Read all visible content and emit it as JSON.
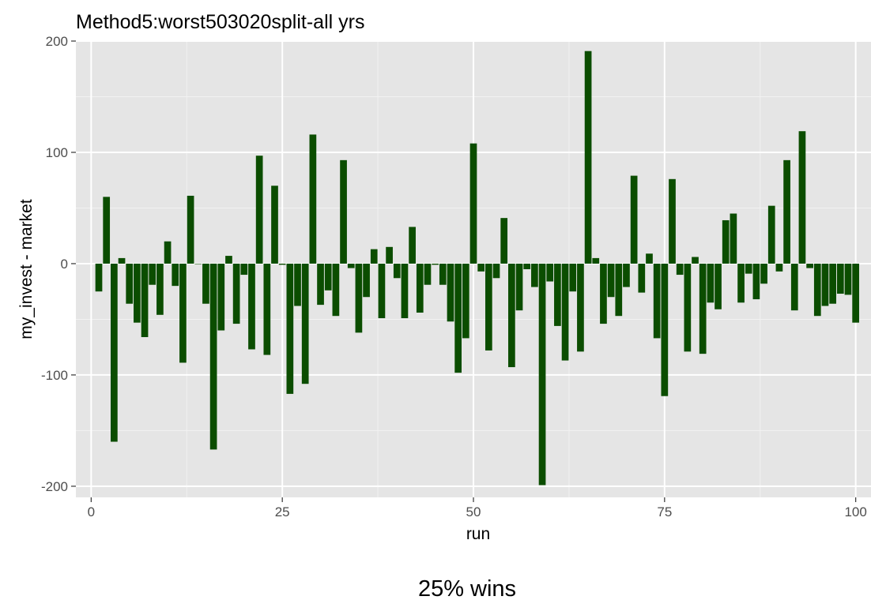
{
  "chart_data": {
    "type": "bar",
    "title": "Method5:worst503020split-all yrs",
    "xlabel": "run",
    "ylabel": "my_invest - market",
    "xlim": [
      -2,
      102
    ],
    "ylim": [
      -210,
      200
    ],
    "x_ticks": [
      0,
      25,
      50,
      75,
      100
    ],
    "x_tick_labels": [
      "0",
      "25",
      "50",
      "75",
      "100"
    ],
    "y_ticks": [
      -200,
      -100,
      0,
      100,
      200
    ],
    "y_tick_labels": [
      "-200",
      "-100",
      "0",
      "100",
      "200"
    ],
    "grid": true,
    "legend": "none",
    "bar_color": "#0b4d00",
    "panel_color": "#e5e5e5",
    "x": [
      1,
      2,
      3,
      4,
      5,
      6,
      7,
      8,
      9,
      10,
      11,
      12,
      13,
      14,
      15,
      16,
      17,
      18,
      19,
      20,
      21,
      22,
      23,
      24,
      25,
      26,
      27,
      28,
      29,
      30,
      31,
      32,
      33,
      34,
      35,
      36,
      37,
      38,
      39,
      40,
      41,
      42,
      43,
      44,
      45,
      46,
      47,
      48,
      49,
      50,
      51,
      52,
      53,
      54,
      55,
      56,
      57,
      58,
      59,
      60,
      61,
      62,
      63,
      64,
      65,
      66,
      67,
      68,
      69,
      70,
      71,
      72,
      73,
      74,
      75,
      76,
      77,
      78,
      79,
      80,
      81,
      82,
      83,
      84,
      85,
      86,
      87,
      88,
      89,
      90,
      91,
      92,
      93,
      94,
      95,
      96,
      97,
      98,
      99,
      100
    ],
    "values": [
      -25,
      60,
      -160,
      5,
      -36,
      -53,
      -66,
      -19,
      -46,
      20,
      -20,
      -89,
      61,
      0,
      -36,
      -167,
      -60,
      7,
      -54,
      -10,
      -77,
      97,
      -82,
      70,
      -1,
      -117,
      -38,
      -108,
      116,
      -37,
      -24,
      -47,
      93,
      -4,
      -62,
      -30,
      13,
      -49,
      15,
      -13,
      -49,
      33,
      -44,
      -19,
      -1,
      -19,
      -52,
      -98,
      -67,
      108,
      -7,
      -78,
      -13,
      41,
      -93,
      -42,
      -5,
      -21,
      -199,
      -16,
      -56,
      -87,
      -25,
      -79,
      191,
      5,
      -54,
      -30,
      -47,
      -21,
      79,
      -26,
      9,
      -67,
      -119,
      76,
      -10,
      -79,
      6,
      -81,
      -35,
      -41,
      39,
      45,
      -35,
      -9,
      -32,
      -18,
      52,
      -7,
      93,
      -42,
      119,
      -4,
      -47,
      -38,
      -36,
      -27,
      -28,
      -53
    ]
  },
  "caption": "25% wins"
}
